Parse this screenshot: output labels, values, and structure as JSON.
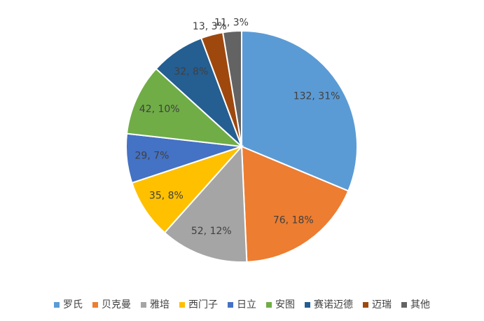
{
  "chart_data": {
    "type": "pie",
    "categories": [
      "罗氏",
      "贝克曼",
      "雅培",
      "西门子",
      "日立",
      "安图",
      "赛诺迈德",
      "迈瑞",
      "其他"
    ],
    "values": [
      132,
      76,
      52,
      35,
      29,
      42,
      32,
      13,
      11
    ],
    "value_labels": [
      "132, 31%",
      "76, 18%",
      "52, 12%",
      "35, 8%",
      "29, 7%",
      "42, 10%",
      "32, 8%",
      "13, 3%",
      "11, 3%"
    ],
    "colors": [
      "#5b9bd5",
      "#ed7d31",
      "#a5a5a5",
      "#ffc000",
      "#4472c4",
      "#70ad47",
      "#255e91",
      "#9e480e",
      "#636363"
    ],
    "legend": "bottom"
  }
}
